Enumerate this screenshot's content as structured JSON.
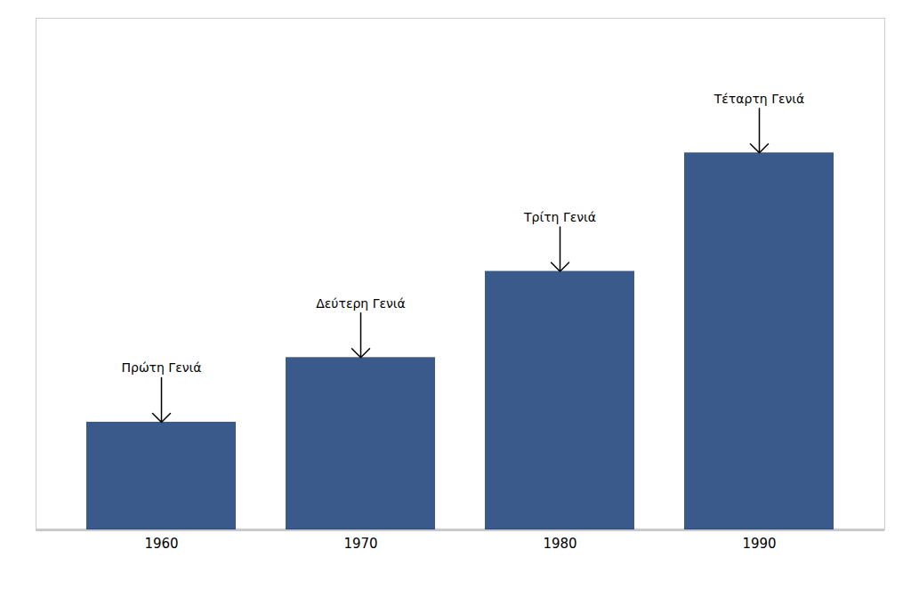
{
  "chart_data": {
    "type": "bar",
    "categories": [
      "1960",
      "1970",
      "1980",
      "1990"
    ],
    "values": [
      2.0,
      3.2,
      4.8,
      7.0
    ],
    "color": "#3A5A8C",
    "ylim": [
      0,
      9.5
    ],
    "yticks": [],
    "grid": false,
    "tick_labels": "x",
    "annotations": [
      {
        "text": "Πρώτη Γενιά",
        "category": "1960"
      },
      {
        "text": "Δεύτερη Γενιά",
        "category": "1970"
      },
      {
        "text": "Τρίτη Γενιά",
        "category": "1980"
      },
      {
        "text": "Τέταρτη Γενιά",
        "category": "1990"
      }
    ]
  }
}
